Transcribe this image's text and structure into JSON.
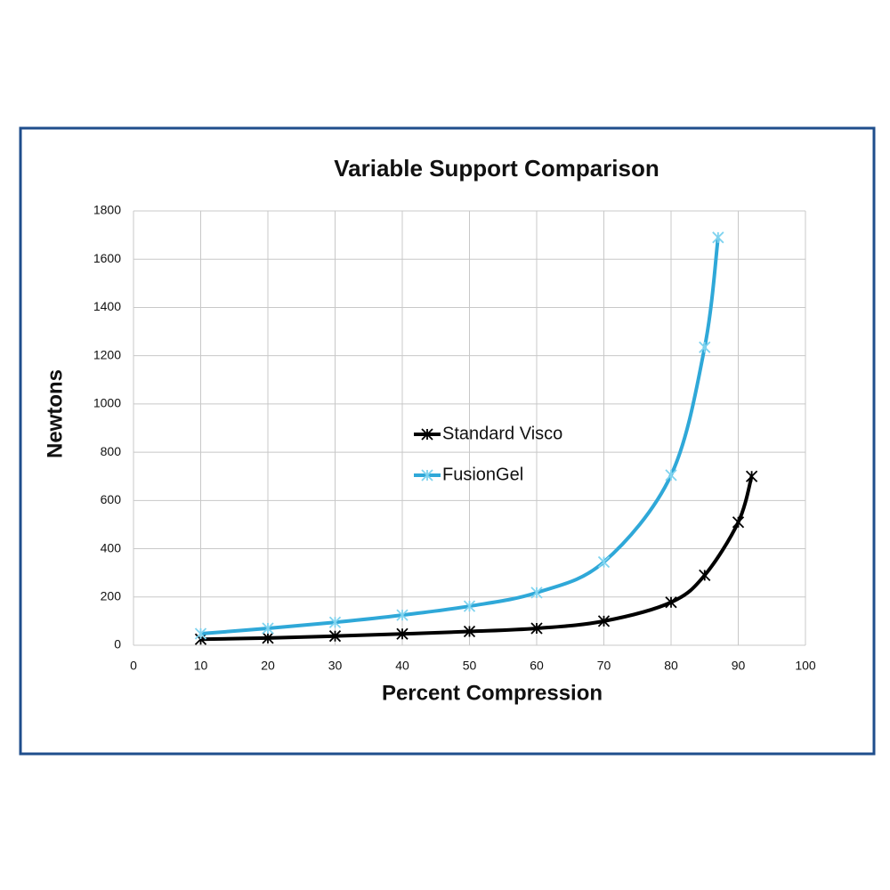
{
  "chart_data": {
    "type": "line",
    "title": "Variable Support Comparison",
    "x_label": "Percent Compression",
    "y_label": "Newtons",
    "xlim": [
      0,
      100
    ],
    "xticks": [
      0,
      10,
      20,
      30,
      40,
      50,
      60,
      70,
      80,
      90,
      100
    ],
    "ylim": [
      0,
      1800
    ],
    "yticks": [
      0,
      200,
      400,
      600,
      800,
      1000,
      1200,
      1400,
      1600,
      1800
    ],
    "grid": true,
    "legend_position": "center",
    "series": [
      {
        "name": "Standard Visco",
        "color": "#000000",
        "x": [
          10,
          20,
          30,
          40,
          50,
          60,
          70,
          80,
          85,
          90,
          92
        ],
        "values": [
          25,
          30,
          38,
          47,
          57,
          70,
          100,
          178,
          290,
          510,
          700
        ]
      },
      {
        "name": "FusionGel",
        "color": "#2fa8d8",
        "x": [
          10,
          20,
          30,
          40,
          50,
          60,
          70,
          80,
          85,
          87
        ],
        "values": [
          48,
          70,
          95,
          125,
          162,
          218,
          345,
          705,
          1235,
          1690
        ]
      }
    ]
  }
}
